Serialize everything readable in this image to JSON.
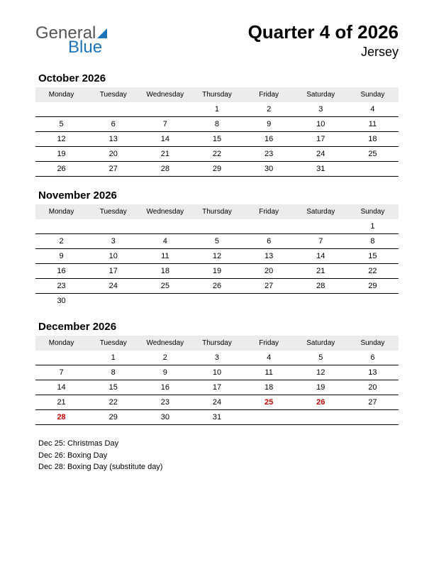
{
  "logo": {
    "part1": "General",
    "part2": "Blue"
  },
  "title": "Quarter 4 of 2026",
  "region": "Jersey",
  "day_headers": [
    "Monday",
    "Tuesday",
    "Wednesday",
    "Thursday",
    "Friday",
    "Saturday",
    "Sunday"
  ],
  "holiday_color": "#c00000",
  "header_bg": "#ececec",
  "months": [
    {
      "name": "October 2026",
      "weeks": [
        [
          "",
          "",
          "",
          "1",
          "2",
          "3",
          "4"
        ],
        [
          "5",
          "6",
          "7",
          "8",
          "9",
          "10",
          "11"
        ],
        [
          "12",
          "13",
          "14",
          "15",
          "16",
          "17",
          "18"
        ],
        [
          "19",
          "20",
          "21",
          "22",
          "23",
          "24",
          "25"
        ],
        [
          "26",
          "27",
          "28",
          "29",
          "30",
          "31",
          ""
        ]
      ],
      "holidays": []
    },
    {
      "name": "November 2026",
      "weeks": [
        [
          "",
          "",
          "",
          "",
          "",
          "",
          "1"
        ],
        [
          "2",
          "3",
          "4",
          "5",
          "6",
          "7",
          "8"
        ],
        [
          "9",
          "10",
          "11",
          "12",
          "13",
          "14",
          "15"
        ],
        [
          "16",
          "17",
          "18",
          "19",
          "20",
          "21",
          "22"
        ],
        [
          "23",
          "24",
          "25",
          "26",
          "27",
          "28",
          "29"
        ],
        [
          "30",
          "",
          "",
          "",
          "",
          "",
          ""
        ]
      ],
      "holidays": []
    },
    {
      "name": "December 2026",
      "weeks": [
        [
          "",
          "1",
          "2",
          "3",
          "4",
          "5",
          "6"
        ],
        [
          "7",
          "8",
          "9",
          "10",
          "11",
          "12",
          "13"
        ],
        [
          "14",
          "15",
          "16",
          "17",
          "18",
          "19",
          "20"
        ],
        [
          "21",
          "22",
          "23",
          "24",
          "25",
          "26",
          "27"
        ],
        [
          "28",
          "29",
          "30",
          "31",
          "",
          "",
          ""
        ]
      ],
      "holidays": [
        "25",
        "26",
        "28"
      ]
    }
  ],
  "holiday_notes": [
    "Dec 25: Christmas Day",
    "Dec 26: Boxing Day",
    "Dec 28: Boxing Day (substitute day)"
  ]
}
